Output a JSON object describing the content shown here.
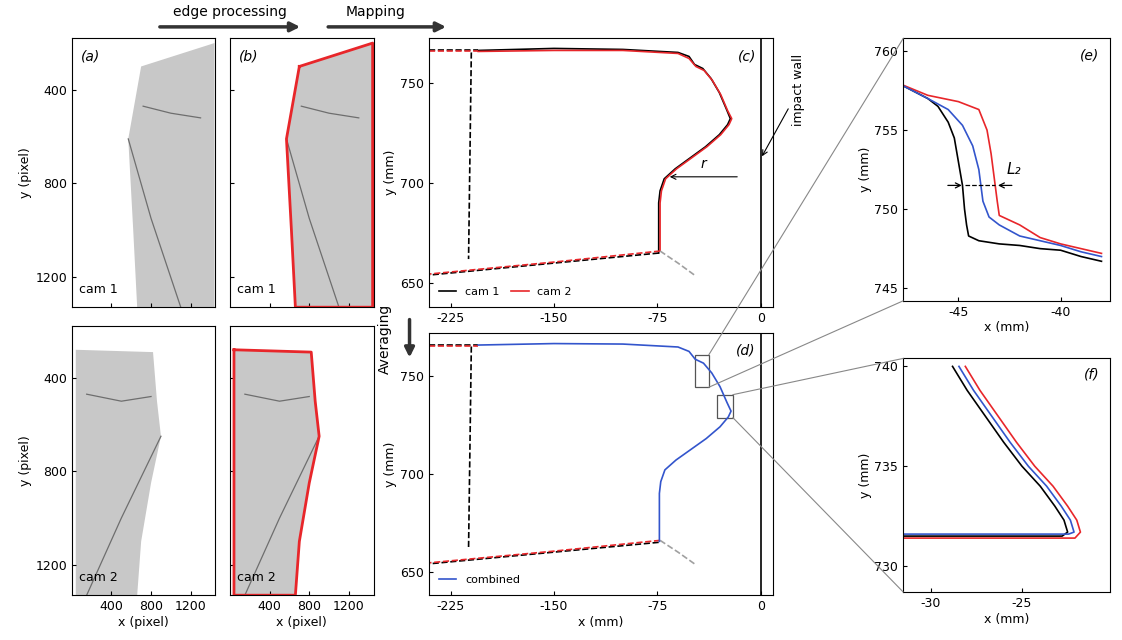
{
  "flow": [
    {
      "text": "edge processing"
    },
    {
      "text": "Mapping"
    },
    {
      "text": "Averaging"
    }
  ],
  "chart_data": [
    {
      "type": "image",
      "title": "(a)",
      "ylabel": "y (pixel)",
      "tick_labels": "y",
      "xlim": [
        0,
        1450
      ],
      "ylim": [
        1330,
        180
      ],
      "xticks": [
        400,
        800,
        1200
      ],
      "yticks": [
        400,
        800,
        1200
      ],
      "annotations": [
        {
          "text": "cam 1"
        }
      ],
      "series": [
        {
          "type": "fill",
          "color": "#c8c8c8",
          "x": [
            700,
            1440,
            1440,
            660,
            620,
            570,
            700
          ],
          "y": [
            300,
            200,
            1330,
            1330,
            1000,
            610,
            300
          ]
        },
        {
          "type": "line",
          "color": "#6e6e6e",
          "line_style": "solid",
          "x": [
            570,
            800,
            1100
          ],
          "y": [
            610,
            950,
            1330
          ]
        },
        {
          "type": "line",
          "color": "#6e6e6e",
          "line_style": "solid",
          "x": [
            720,
            1000,
            1300
          ],
          "y": [
            470,
            500,
            520
          ]
        }
      ]
    },
    {
      "type": "image",
      "xlabel": "x (pixel)",
      "ylabel": "y (pixel)",
      "xlim": [
        0,
        1450
      ],
      "ylim": [
        1330,
        180
      ],
      "xticks": [
        400,
        800,
        1200
      ],
      "yticks": [
        400,
        800,
        1200
      ],
      "annotations": [
        {
          "text": "cam 2"
        }
      ],
      "series": [
        {
          "type": "fill",
          "color": "#c8c8c8",
          "x": [
            40,
            820,
            860,
            900,
            800,
            700,
            660,
            40,
            40
          ],
          "y": [
            280,
            290,
            500,
            650,
            850,
            1100,
            1330,
            1330,
            280
          ]
        },
        {
          "type": "line",
          "color": "#6e6e6e",
          "line_style": "solid",
          "x": [
            900,
            500,
            150
          ],
          "y": [
            650,
            1000,
            1330
          ]
        },
        {
          "type": "line",
          "color": "#6e6e6e",
          "line_style": "solid",
          "x": [
            150,
            500,
            800
          ],
          "y": [
            470,
            500,
            480
          ]
        }
      ]
    },
    {
      "type": "image",
      "title": "(b)",
      "tick_labels": false,
      "xlim": [
        0,
        1450
      ],
      "ylim": [
        1330,
        180
      ],
      "xticks": [
        400,
        800,
        1200
      ],
      "yticks": [
        400,
        800,
        1200
      ],
      "annotations": [
        {
          "text": "cam 1"
        }
      ],
      "series": [
        {
          "type": "fill",
          "color": "#c8c8c8",
          "x": [
            700,
            1440,
            1440,
            660,
            620,
            570,
            700
          ],
          "y": [
            300,
            200,
            1330,
            1330,
            1000,
            610,
            300
          ]
        },
        {
          "type": "line",
          "color": "#6e6e6e",
          "line_style": "solid",
          "x": [
            570,
            800,
            1100
          ],
          "y": [
            610,
            950,
            1330
          ]
        },
        {
          "type": "line",
          "color": "#6e6e6e",
          "line_style": "solid",
          "x": [
            720,
            1000,
            1300
          ],
          "y": [
            470,
            500,
            520
          ]
        },
        {
          "type": "line",
          "color": "#e8262a",
          "line_style": "solid",
          "x": [
            700,
            1440,
            1440,
            660,
            620,
            570,
            700
          ],
          "y": [
            300,
            200,
            1330,
            1330,
            1000,
            610,
            300
          ]
        }
      ]
    },
    {
      "type": "image",
      "xlabel": "x (pixel)",
      "tick_labels": "x",
      "xlim": [
        0,
        1450
      ],
      "ylim": [
        1330,
        180
      ],
      "xticks": [
        400,
        800,
        1200
      ],
      "yticks": [
        400,
        800,
        1200
      ],
      "annotations": [
        {
          "text": "cam 2"
        }
      ],
      "series": [
        {
          "type": "fill",
          "color": "#c8c8c8",
          "x": [
            40,
            820,
            860,
            900,
            800,
            700,
            660,
            40,
            40
          ],
          "y": [
            280,
            290,
            500,
            650,
            850,
            1100,
            1330,
            1330,
            280
          ]
        },
        {
          "type": "line",
          "color": "#6e6e6e",
          "line_style": "solid",
          "x": [
            900,
            500,
            150
          ],
          "y": [
            650,
            1000,
            1330
          ]
        },
        {
          "type": "line",
          "color": "#6e6e6e",
          "line_style": "solid",
          "x": [
            150,
            500,
            800
          ],
          "y": [
            470,
            500,
            480
          ]
        },
        {
          "type": "line",
          "color": "#e8262a",
          "line_style": "solid",
          "x": [
            40,
            820,
            860,
            900,
            800,
            700,
            660,
            40,
            40
          ],
          "y": [
            280,
            290,
            500,
            650,
            850,
            1100,
            1330,
            1330,
            280
          ]
        }
      ]
    },
    {
      "type": "line",
      "title": "(c)",
      "ylabel": "y (mm)",
      "legend": "lower left",
      "xlim": [
        -241,
        9
      ],
      "ylim": [
        638,
        772
      ],
      "xticks": [
        -225,
        -150,
        -75,
        0
      ],
      "yticks": [
        650,
        700,
        750
      ],
      "annotations": [
        {
          "text": "impact wall",
          "points_to": [
            0,
            712
          ]
        },
        {
          "text": "r",
          "from": [
            -15,
            703
          ],
          "to": [
            -68,
            703
          ]
        }
      ],
      "series": [
        {
          "color": "#000000",
          "line_style": "solid",
          "x": [
            0,
            0
          ],
          "y": [
            638,
            772
          ]
        },
        {
          "name": "cam 1",
          "color": "#000000",
          "line_style": "solid",
          "x": [
            -205,
            -150,
            -100,
            -60,
            -52,
            -48,
            -42,
            -36,
            -30,
            -25,
            -22,
            -24,
            -30,
            -40,
            -52,
            -62,
            -70,
            -73,
            -74,
            -74
          ],
          "y": [
            766,
            767,
            766.5,
            765,
            763,
            759,
            757,
            752,
            745,
            737,
            732,
            729,
            724,
            718,
            712,
            707,
            702,
            696,
            690,
            665
          ]
        },
        {
          "color": "#000000",
          "line_style": "dashed",
          "x": [
            -241,
            -205
          ],
          "y": [
            766,
            766
          ]
        },
        {
          "color": "#000000",
          "line_style": "dashed",
          "x": [
            -74,
            -150,
            -241
          ],
          "y": [
            665,
            660,
            654
          ]
        },
        {
          "color": "#000000",
          "line_style": "dashed",
          "x": [
            -210,
            -212
          ],
          "y": [
            765,
            662
          ]
        },
        {
          "name": "cam 2",
          "color": "#e8262a",
          "line_style": "solid",
          "x": [
            -205,
            -150,
            -100,
            -60,
            -52,
            -47,
            -41,
            -35,
            -29,
            -24,
            -21,
            -23,
            -29,
            -39,
            -51,
            -61,
            -69,
            -72,
            -73,
            -73
          ],
          "y": [
            765.5,
            766,
            766,
            764.5,
            762,
            758,
            756,
            751,
            744,
            736,
            732,
            729,
            724,
            718,
            712,
            707,
            702,
            696,
            690,
            666
          ]
        },
        {
          "color": "#e8262a",
          "line_style": "dashed",
          "x": [
            -241,
            -205
          ],
          "y": [
            765.5,
            765.5
          ]
        },
        {
          "color": "#e8262a",
          "line_style": "dashed",
          "x": [
            -73,
            -150,
            -241
          ],
          "y": [
            666,
            660.5,
            654.5
          ]
        },
        {
          "color": "#a0a0a0",
          "line_style": "dashed",
          "x": [
            -73,
            -60,
            -48
          ],
          "y": [
            666,
            660,
            654
          ]
        }
      ]
    },
    {
      "type": "line",
      "title": "(d)",
      "xlabel": "x (mm)",
      "ylabel": "y (mm)",
      "legend": "lower left",
      "xlim": [
        -241,
        9
      ],
      "ylim": [
        638,
        772
      ],
      "xticks": [
        -225,
        -150,
        -75,
        0
      ],
      "yticks": [
        650,
        700,
        750
      ],
      "series": [
        {
          "color": "#000000",
          "line_style": "solid",
          "x": [
            0,
            0
          ],
          "y": [
            638,
            772
          ]
        },
        {
          "color": "#000000",
          "line_style": "dashed",
          "x": [
            -241,
            -205
          ],
          "y": [
            766,
            766
          ]
        },
        {
          "color": "#000000",
          "line_style": "dashed",
          "x": [
            -74,
            -150,
            -241
          ],
          "y": [
            665,
            660,
            654
          ]
        },
        {
          "color": "#000000",
          "line_style": "dashed",
          "x": [
            -210,
            -212
          ],
          "y": [
            765,
            662
          ]
        },
        {
          "color": "#e8262a",
          "line_style": "dashed",
          "x": [
            -241,
            -205
          ],
          "y": [
            765.5,
            765.5
          ]
        },
        {
          "color": "#e8262a",
          "line_style": "dashed",
          "x": [
            -73,
            -150,
            -241
          ],
          "y": [
            666,
            660.5,
            654.5
          ]
        },
        {
          "color": "#a0a0a0",
          "line_style": "dashed",
          "x": [
            -73,
            -60,
            -48
          ],
          "y": [
            666,
            660,
            654
          ]
        },
        {
          "name": "combined",
          "color": "#3355cc",
          "line_style": "solid",
          "x": [
            -205,
            -150,
            -100,
            -60,
            -52,
            -47.5,
            -41.5,
            -35.5,
            -29.5,
            -24.5,
            -21.5,
            -23.5,
            -29.5,
            -39.5,
            -51.5,
            -61.5,
            -69.5,
            -72.5,
            -73.5,
            -73.5
          ],
          "y": [
            765.75,
            766.5,
            766.25,
            764.75,
            762.5,
            758.5,
            756.5,
            751.5,
            744.5,
            736.5,
            732,
            729,
            724,
            718,
            712,
            707,
            702,
            696,
            690,
            665.5
          ]
        }
      ]
    },
    {
      "type": "line",
      "title": "(e)",
      "xlabel": "x (mm)",
      "ylabel": "y (mm)",
      "xlim": [
        -47.7,
        -37.6
      ],
      "ylim": [
        744.2,
        760.8
      ],
      "xticks": [
        -45,
        -40
      ],
      "yticks": [
        745,
        750,
        755,
        760
      ],
      "annotations": [
        {
          "text": "L₂",
          "between": [
            [
              -44.7,
              751.5
            ],
            [
              -43.2,
              751.5
            ]
          ]
        }
      ],
      "series": [
        {
          "color": "#000000",
          "line_style": "solid",
          "x": [
            -48,
            -46.5,
            -46,
            -45.5,
            -45.2,
            -45,
            -44.8,
            -44.7,
            -44.6,
            -44.5,
            -44,
            -43,
            -42,
            -41,
            -40,
            -39,
            -38
          ],
          "y": [
            758,
            757,
            756.5,
            755.5,
            754.5,
            753,
            751.5,
            750,
            749,
            748.3,
            748,
            747.8,
            747.7,
            747.5,
            747.4,
            747,
            746.7
          ]
        },
        {
          "color": "#e8262a",
          "line_style": "solid",
          "x": [
            -48,
            -46.5,
            -45,
            -44,
            -43.6,
            -43.4,
            -43.2,
            -43.1,
            -43,
            -42.5,
            -42,
            -41,
            -40,
            -39,
            -38
          ],
          "y": [
            758,
            757.2,
            756.8,
            756.3,
            755,
            753.5,
            751.5,
            750.5,
            749.6,
            749.3,
            749,
            748.2,
            747.8,
            747.5,
            747.2
          ]
        },
        {
          "color": "#3355cc",
          "line_style": "solid",
          "x": [
            -48,
            -46.5,
            -45.5,
            -44.8,
            -44.3,
            -44,
            -43.9,
            -43.8,
            -43.5,
            -43,
            -42,
            -41,
            -40,
            -39,
            -38
          ],
          "y": [
            758,
            757,
            756.3,
            755.3,
            754,
            752.5,
            751.5,
            750.5,
            749.5,
            749,
            748.3,
            748,
            747.7,
            747.3,
            747
          ]
        }
      ]
    },
    {
      "type": "line",
      "title": "(f)",
      "xlabel": "x (mm)",
      "ylabel": "y (mm)",
      "xlim": [
        -31.5,
        -20.2
      ],
      "ylim": [
        728.7,
        740.4
      ],
      "xticks": [
        -30,
        -25
      ],
      "yticks": [
        730,
        735,
        740
      ],
      "series": [
        {
          "color": "#000000",
          "line_style": "solid",
          "x": [
            -28.8,
            -28,
            -27,
            -26,
            -25,
            -24,
            -23.2,
            -22.7,
            -22.5,
            -22.8,
            -25,
            -28,
            -31.5
          ],
          "y": [
            740,
            738.8,
            737.5,
            736.2,
            735,
            734,
            733,
            732.3,
            731.7,
            731.5,
            731.5,
            731.5,
            731.5
          ]
        },
        {
          "color": "#e8262a",
          "line_style": "solid",
          "x": [
            -28.1,
            -27.3,
            -26.3,
            -25.3,
            -24.3,
            -23.3,
            -22.5,
            -22.0,
            -21.8,
            -22.1,
            -25,
            -28,
            -31.5
          ],
          "y": [
            740,
            738.8,
            737.5,
            736.2,
            735,
            734,
            733,
            732.3,
            731.7,
            731.4,
            731.4,
            731.4,
            731.4
          ]
        },
        {
          "color": "#3355cc",
          "line_style": "solid",
          "x": [
            -28.45,
            -27.65,
            -26.65,
            -25.65,
            -24.65,
            -23.65,
            -22.85,
            -22.35,
            -22.15,
            -22.45,
            -25,
            -28,
            -31.5
          ],
          "y": [
            740,
            738.8,
            737.5,
            736.2,
            735,
            734,
            733,
            732.3,
            731.7,
            731.6,
            731.6,
            731.6,
            731.6
          ]
        }
      ]
    }
  ]
}
